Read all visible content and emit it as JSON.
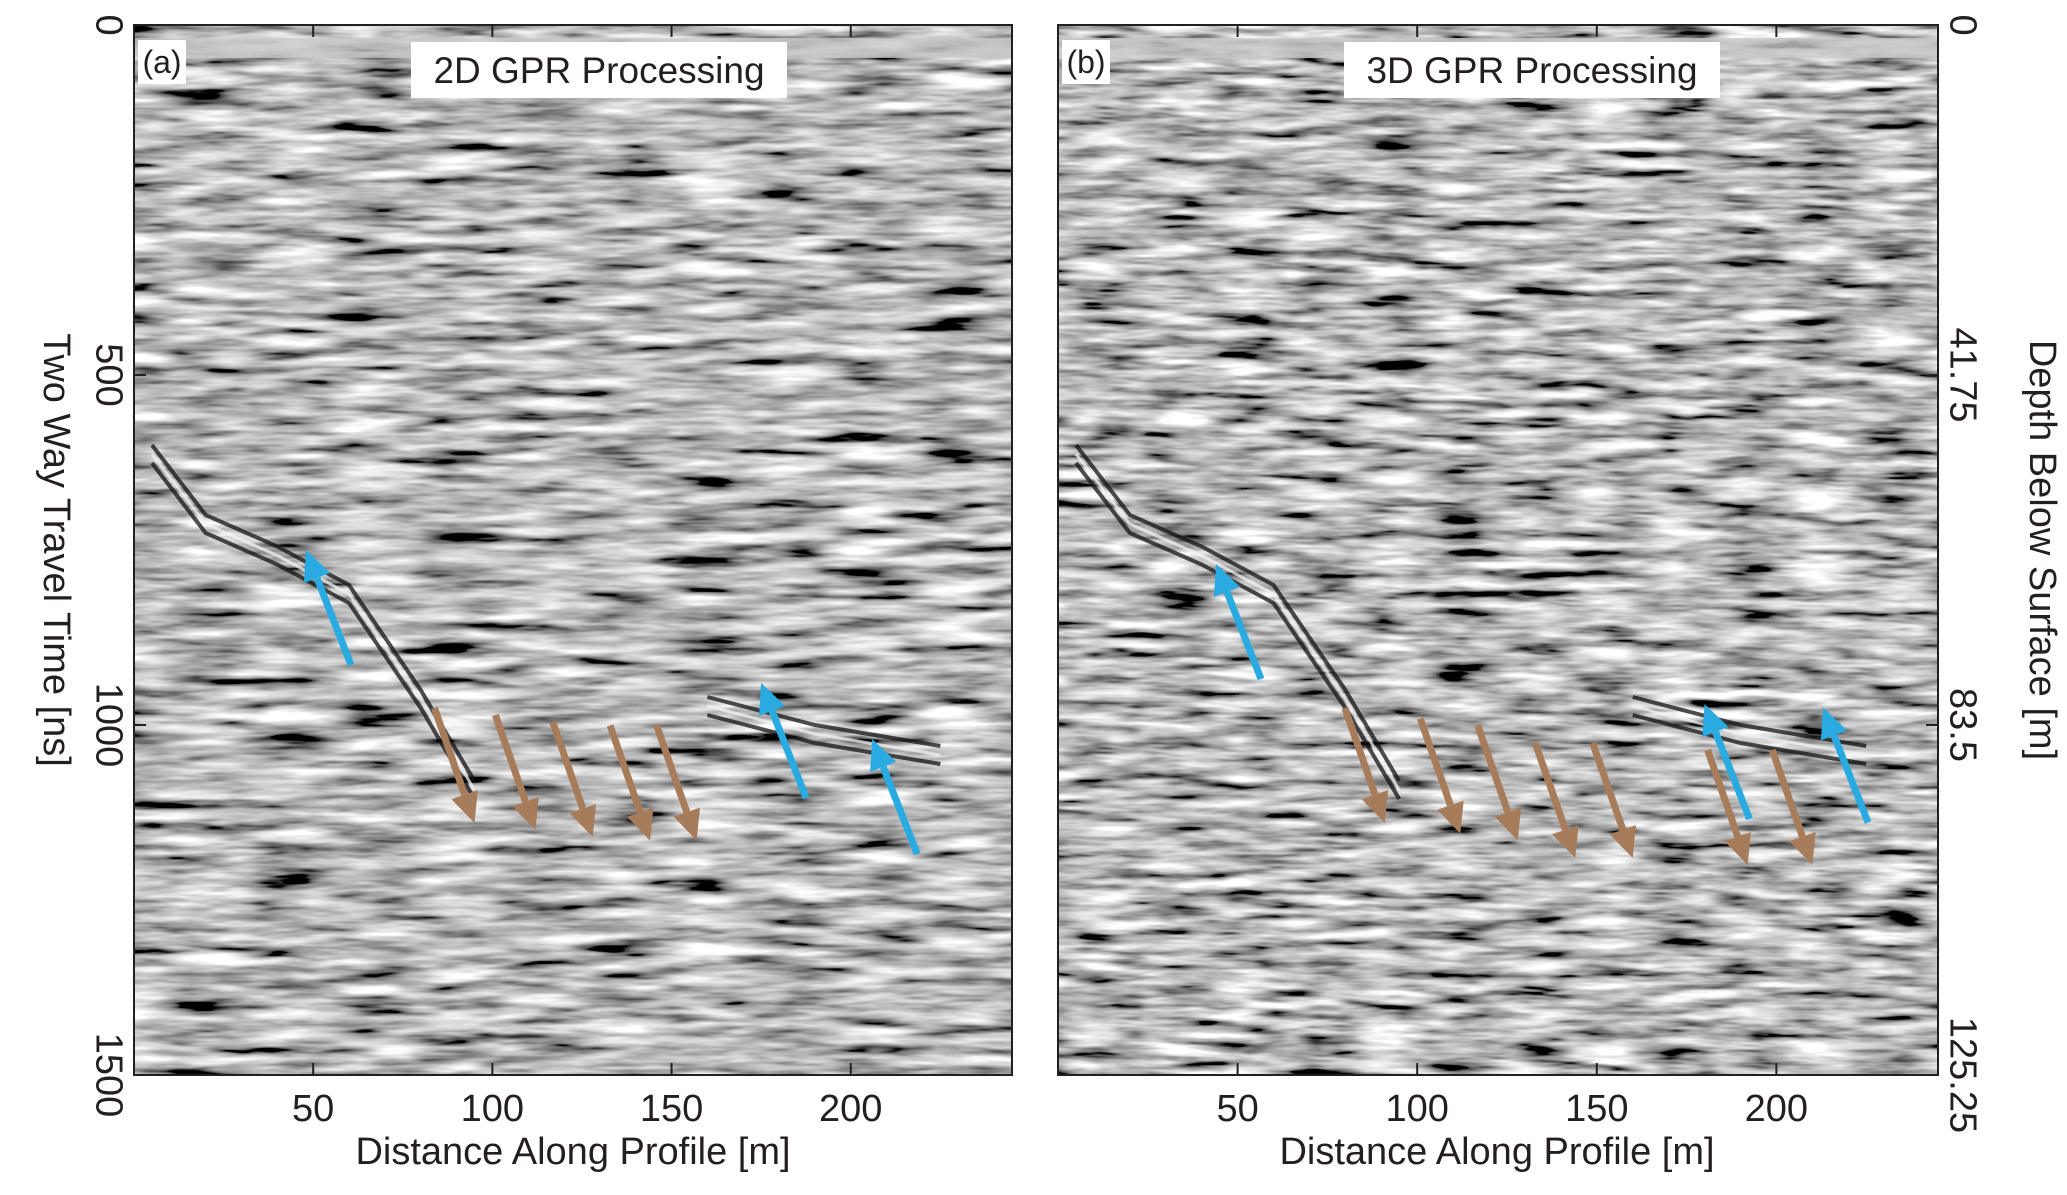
{
  "chart_data": [
    {
      "type": "heatmap",
      "panel_label": "(a)",
      "title": "2D GPR Processing",
      "xlabel": "Distance Along Profile [m]",
      "ylabel": "Two Way Travel Time [ns]",
      "xlim": [
        0,
        245
      ],
      "ylim": [
        1500,
        0
      ],
      "x_ticks": [
        50,
        100,
        150,
        200
      ],
      "y_ticks": [
        0,
        500,
        1000,
        1500
      ],
      "annotations": {
        "blue_arrows_tip": [
          {
            "x": 48,
            "y": 750
          },
          {
            "x": 175,
            "y": 940
          },
          {
            "x": 206,
            "y": 1020
          }
        ],
        "brown_arrows_tip": [
          {
            "x": 95,
            "y": 1140
          },
          {
            "x": 112,
            "y": 1150
          },
          {
            "x": 128,
            "y": 1160
          },
          {
            "x": 144,
            "y": 1165
          },
          {
            "x": 157,
            "y": 1165
          }
        ]
      },
      "colors": {
        "blue_arrow": "#29abe2",
        "brown_arrow": "#a67c5b"
      }
    },
    {
      "type": "heatmap",
      "panel_label": "(b)",
      "title": "3D GPR Processing",
      "xlabel": "Distance Along Profile [m]",
      "ylabel_right": "Depth Below Surface [m]",
      "xlim": [
        0,
        245
      ],
      "ylim": [
        1500,
        0
      ],
      "x_ticks": [
        50,
        100,
        150,
        200
      ],
      "y_ticks_right": [
        "0",
        "41.75",
        "83.5",
        "125.25"
      ],
      "annotations": {
        "blue_arrows_tip": [
          {
            "x": 44,
            "y": 770
          },
          {
            "x": 180,
            "y": 970
          },
          {
            "x": 213,
            "y": 975
          }
        ],
        "brown_arrows_tip": [
          {
            "x": 91,
            "y": 1140
          },
          {
            "x": 112,
            "y": 1155
          },
          {
            "x": 128,
            "y": 1165
          },
          {
            "x": 144,
            "y": 1190
          },
          {
            "x": 160,
            "y": 1190
          },
          {
            "x": 192,
            "y": 1200
          },
          {
            "x": 210,
            "y": 1200
          }
        ]
      },
      "colors": {
        "blue_arrow": "#29abe2",
        "brown_arrow": "#a67c5b"
      }
    }
  ]
}
